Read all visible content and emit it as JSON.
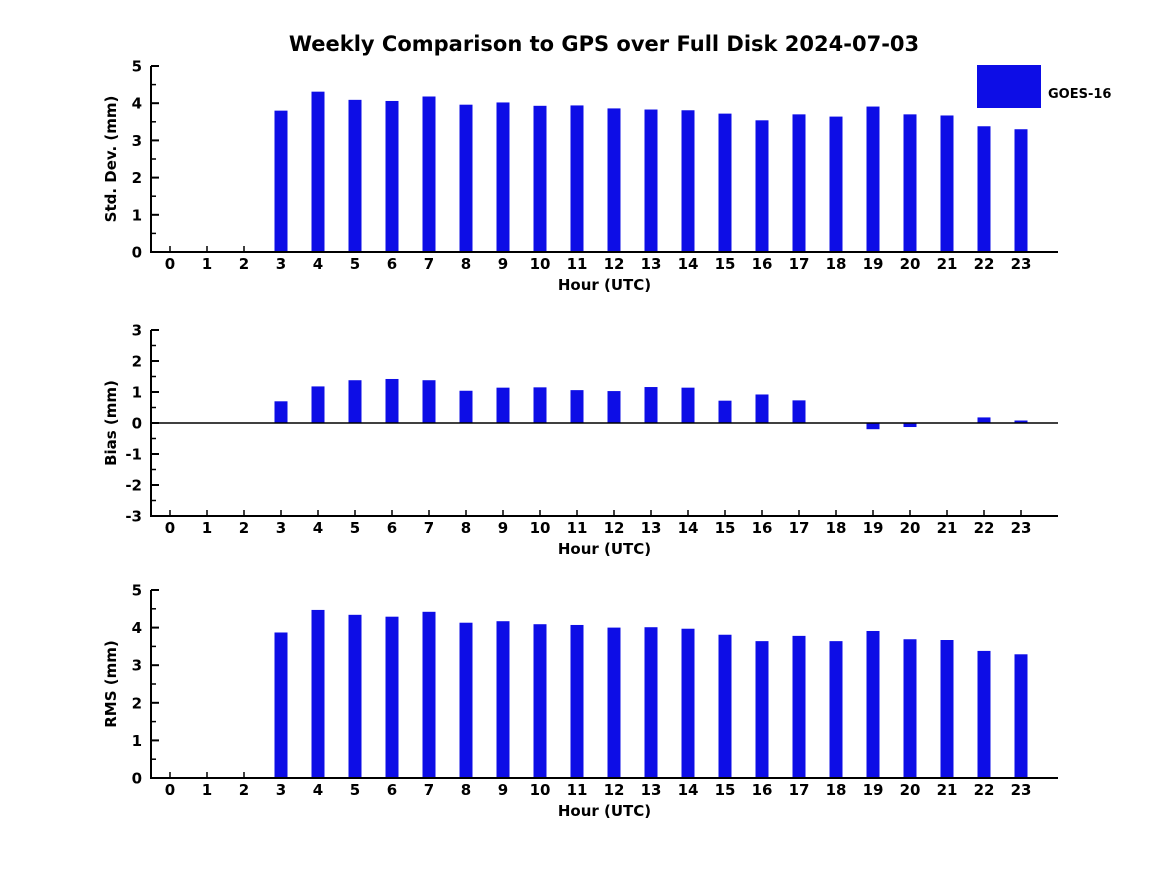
{
  "title": "Weekly Comparison to GPS over Full Disk 2024-07-03",
  "legend": {
    "label": "GOES-16",
    "color": "#0d0de6",
    "position": "top-right"
  },
  "colors": {
    "bar": "#0d0de6",
    "axis": "#000000",
    "background": "#ffffff"
  },
  "chart_data": [
    {
      "type": "bar",
      "name": "std-dev",
      "ylabel": "Std. Dev. (mm)",
      "xlabel": "Hour (UTC)",
      "categories": [
        0,
        1,
        2,
        3,
        4,
        5,
        6,
        7,
        8,
        9,
        10,
        11,
        12,
        13,
        14,
        15,
        16,
        17,
        18,
        19,
        20,
        21,
        22,
        23
      ],
      "values": [
        0,
        0,
        0,
        3.8,
        4.31,
        4.09,
        4.06,
        4.18,
        3.96,
        4.02,
        3.93,
        3.94,
        3.86,
        3.83,
        3.81,
        3.72,
        3.54,
        3.7,
        3.64,
        3.91,
        3.7,
        3.67,
        3.38,
        3.3
      ],
      "ylim": [
        0,
        5
      ],
      "yticks": [
        0,
        1,
        2,
        3,
        4,
        5
      ],
      "grid": false,
      "zero_line": false,
      "legend": {
        "label": "GOES-16",
        "position": "top-right"
      }
    },
    {
      "type": "bar",
      "name": "bias",
      "ylabel": "Bias (mm)",
      "xlabel": "Hour (UTC)",
      "categories": [
        0,
        1,
        2,
        3,
        4,
        5,
        6,
        7,
        8,
        9,
        10,
        11,
        12,
        13,
        14,
        15,
        16,
        17,
        18,
        19,
        20,
        21,
        22,
        23
      ],
      "values": [
        0,
        0,
        0,
        0.7,
        1.18,
        1.38,
        1.42,
        1.38,
        1.04,
        1.14,
        1.15,
        1.06,
        1.03,
        1.16,
        1.14,
        0.72,
        0.92,
        0.73,
        0,
        -0.2,
        -0.13,
        0,
        0.18,
        0.08
      ],
      "ylim": [
        -3,
        3
      ],
      "yticks": [
        -3,
        -2,
        -1,
        0,
        1,
        2,
        3
      ],
      "grid": false,
      "zero_line": true
    },
    {
      "type": "bar",
      "name": "rms",
      "ylabel": "RMS (mm)",
      "xlabel": "Hour (UTC)",
      "categories": [
        0,
        1,
        2,
        3,
        4,
        5,
        6,
        7,
        8,
        9,
        10,
        11,
        12,
        13,
        14,
        15,
        16,
        17,
        18,
        19,
        20,
        21,
        22,
        23
      ],
      "values": [
        0,
        0,
        0,
        3.87,
        4.47,
        4.34,
        4.29,
        4.42,
        4.13,
        4.17,
        4.09,
        4.07,
        4.0,
        4.01,
        3.97,
        3.81,
        3.64,
        3.78,
        3.64,
        3.91,
        3.69,
        3.67,
        3.38,
        3.29
      ],
      "ylim": [
        0,
        5
      ],
      "yticks": [
        0,
        1,
        2,
        3,
        4,
        5
      ],
      "grid": false,
      "zero_line": false
    }
  ]
}
